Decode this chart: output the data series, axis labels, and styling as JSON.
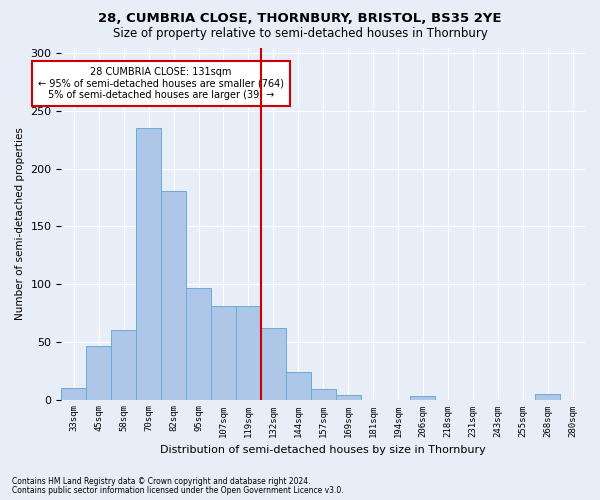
{
  "title": "28, CUMBRIA CLOSE, THORNBURY, BRISTOL, BS35 2YE",
  "subtitle": "Size of property relative to semi-detached houses in Thornbury",
  "xlabel": "Distribution of semi-detached houses by size in Thornbury",
  "ylabel": "Number of semi-detached properties",
  "footnote1": "Contains HM Land Registry data © Crown copyright and database right 2024.",
  "footnote2": "Contains public sector information licensed under the Open Government Licence v3.0.",
  "annotation_title": "28 CUMBRIA CLOSE: 131sqm",
  "annotation_line1": "← 95% of semi-detached houses are smaller (764)",
  "annotation_line2": "5% of semi-detached houses are larger (39) →",
  "bar_labels": [
    "33sqm",
    "45sqm",
    "58sqm",
    "70sqm",
    "82sqm",
    "95sqm",
    "107sqm",
    "119sqm",
    "132sqm",
    "144sqm",
    "157sqm",
    "169sqm",
    "181sqm",
    "194sqm",
    "206sqm",
    "218sqm",
    "231sqm",
    "243sqm",
    "255sqm",
    "268sqm",
    "280sqm"
  ],
  "bar_heights": [
    10,
    46,
    60,
    235,
    181,
    97,
    81,
    81,
    62,
    24,
    9,
    4,
    0,
    0,
    3,
    0,
    0,
    0,
    0,
    5,
    0
  ],
  "vline_index": 8,
  "bar_color": "#aec6e8",
  "bar_edge_color": "#6aaad4",
  "vline_color": "#cc0000",
  "ylim": [
    0,
    305
  ],
  "yticks": [
    0,
    50,
    100,
    150,
    200,
    250,
    300
  ],
  "background_color": "#e8eef8",
  "grid_color": "#ffffff",
  "annotation_box_color": "#ffffff",
  "annotation_box_edge": "#cc0000",
  "title_fontsize": 9.5,
  "subtitle_fontsize": 8.5
}
